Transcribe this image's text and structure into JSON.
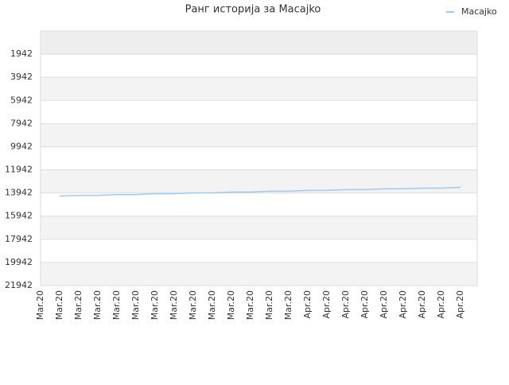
{
  "chart_data": {
    "type": "line",
    "title": "Ранг историја за Macajko",
    "categories": [
      "Mar.20",
      "Mar.20",
      "Mar.20",
      "Mar.20",
      "Mar.20",
      "Mar.20",
      "Mar.20",
      "Mar.20",
      "Mar.20",
      "Mar.20",
      "Mar.20",
      "Mar.20",
      "Mar.20",
      "Mar.20",
      "Apr.20",
      "Apr.20",
      "Apr.20",
      "Apr.20",
      "Apr.20",
      "Apr.20",
      "Apr.20",
      "Apr.20",
      "Apr.20"
    ],
    "series": [
      {
        "name": "Macajko",
        "color": "#9ec9f2",
        "values": [
          null,
          14200,
          14150,
          14150,
          14080,
          14080,
          14000,
          14000,
          13930,
          13930,
          13860,
          13860,
          13790,
          13790,
          13720,
          13720,
          13650,
          13650,
          13580,
          13580,
          13520,
          13520,
          13450
        ]
      }
    ],
    "ylim": [
      -58,
      21942
    ],
    "inverted_y": true,
    "yticks": [
      1942,
      3942,
      5942,
      7942,
      9942,
      11942,
      13942,
      15942,
      17942,
      19942,
      21942
    ],
    "grid": true,
    "legend": "top-right"
  }
}
